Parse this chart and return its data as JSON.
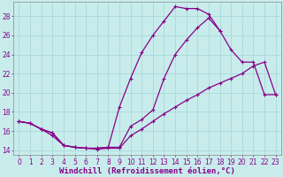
{
  "xlabel": "Windchill (Refroidissement éolien,°C)",
  "bg_color": "#c8ecec",
  "line_color": "#880088",
  "markersize": 3.5,
  "linewidth": 0.9,
  "xlim": [
    -0.5,
    23.5
  ],
  "ylim": [
    13.5,
    29.5
  ],
  "xticks": [
    0,
    1,
    2,
    3,
    4,
    5,
    6,
    7,
    8,
    9,
    10,
    11,
    12,
    13,
    14,
    15,
    16,
    17,
    18,
    19,
    20,
    21,
    22,
    23
  ],
  "yticks": [
    14,
    16,
    18,
    20,
    22,
    24,
    26,
    28
  ],
  "grid_color": "#aad8d8",
  "xlabel_fontsize": 6.5,
  "tick_fontsize": 5.5,
  "curve1_x": [
    0,
    1,
    2,
    3,
    4,
    5,
    6,
    7,
    8,
    9,
    10,
    11,
    12,
    13,
    14,
    15,
    16,
    17,
    18
  ],
  "curve1_y": [
    17.0,
    16.8,
    16.2,
    15.8,
    14.5,
    14.3,
    14.2,
    14.2,
    14.3,
    14.3,
    16.5,
    17.2,
    18.2,
    21.5,
    24.0,
    25.5,
    26.8,
    27.8,
    26.5
  ],
  "curve2_x": [
    0,
    1,
    2,
    3,
    4,
    5,
    6,
    7,
    8,
    9,
    10,
    11,
    12,
    13,
    14,
    15,
    16,
    17,
    18,
    19,
    20,
    21,
    22,
    23
  ],
  "curve2_y": [
    17.0,
    16.8,
    16.2,
    15.8,
    14.5,
    14.3,
    14.2,
    14.2,
    14.3,
    18.5,
    21.5,
    24.2,
    26.0,
    27.5,
    29.0,
    28.8,
    28.8,
    28.2,
    26.5,
    24.5,
    23.2,
    23.2,
    19.8,
    19.8
  ],
  "curve3_x": [
    0,
    1,
    2,
    3,
    4,
    5,
    6,
    7,
    8,
    9,
    10,
    11,
    12,
    13,
    14,
    15,
    16,
    17,
    18,
    19,
    20,
    21,
    22,
    23
  ],
  "curve3_y": [
    17.0,
    16.8,
    16.2,
    15.5,
    14.5,
    14.3,
    14.2,
    14.1,
    14.2,
    14.2,
    15.5,
    16.2,
    17.0,
    17.8,
    18.5,
    19.2,
    19.8,
    20.5,
    21.0,
    21.5,
    22.0,
    22.8,
    23.2,
    19.8
  ]
}
